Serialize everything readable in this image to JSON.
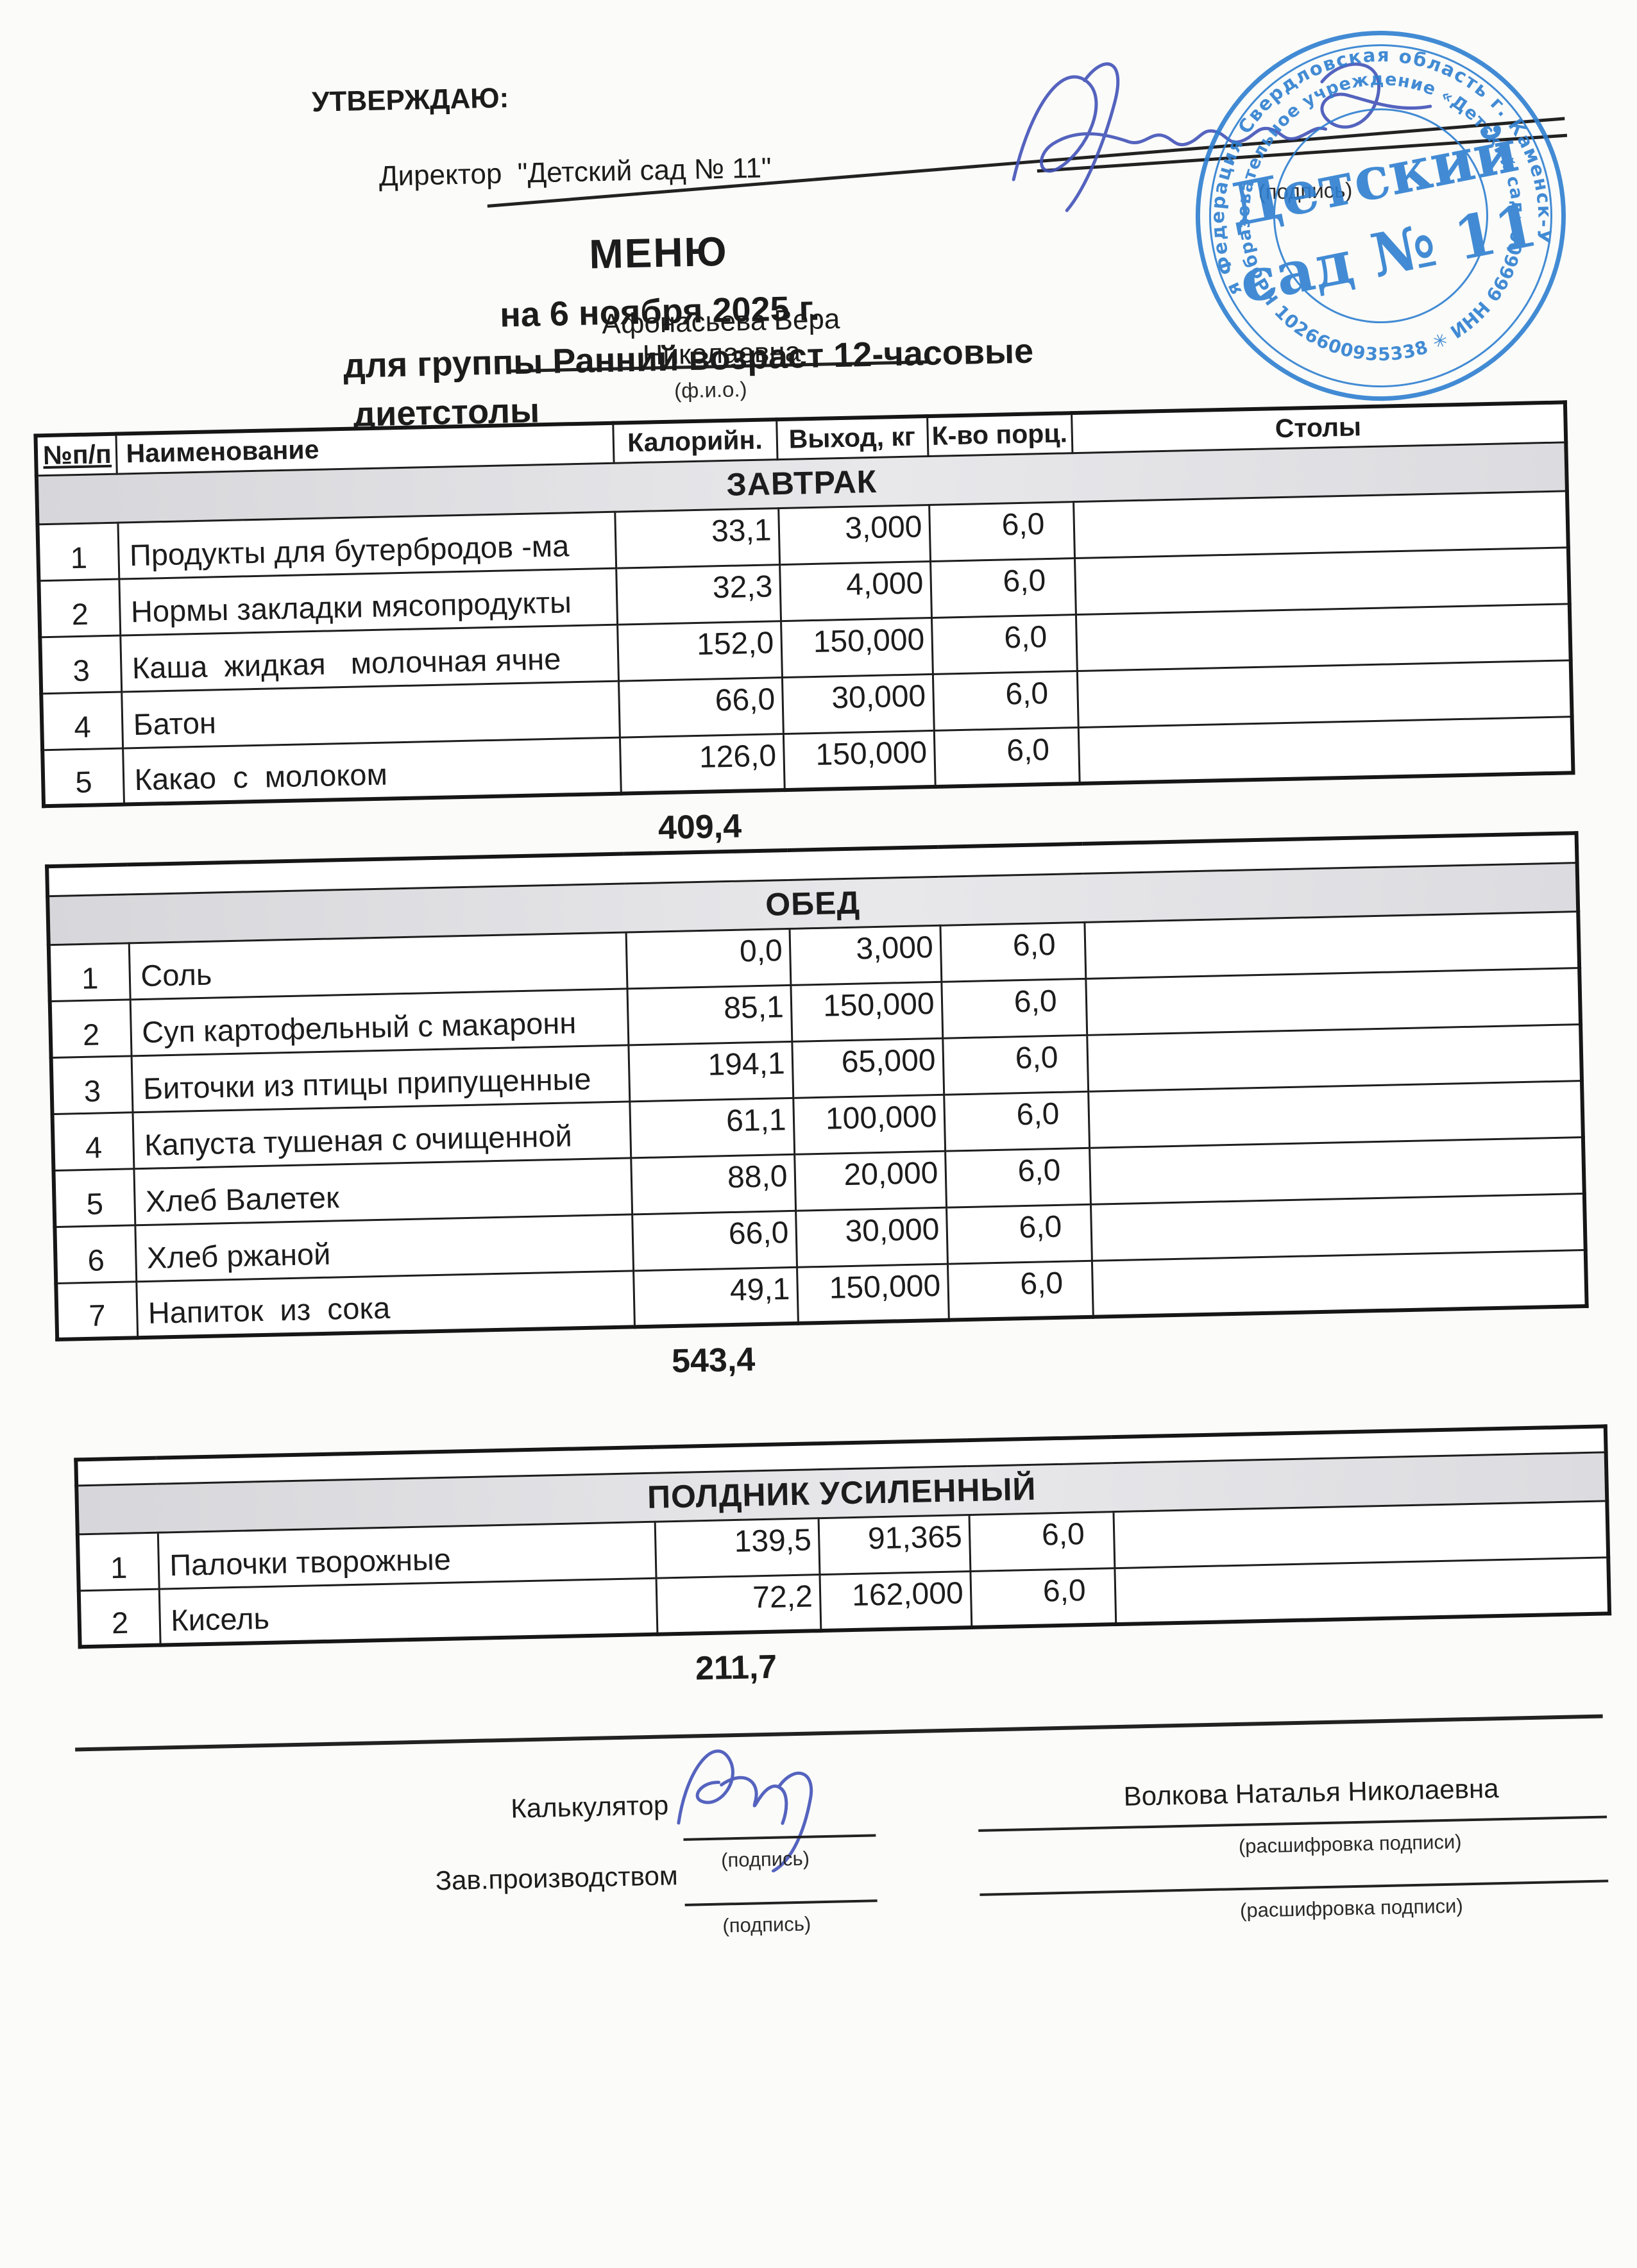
{
  "approval": {
    "approve_label": "УТВЕРЖДАЮ:",
    "director_label": "Директор",
    "director_value": "\"Детский сад № 11\"",
    "fio_value": "Афонасьева Вера Николаевна",
    "fio_caption": "(ф.и.о.)",
    "signature_caption": "(подпись)"
  },
  "stamp": {
    "center_line1": "Детский",
    "center_line2": "сад № 11",
    "ring_top": "Российская Федерация  Свердловская область  г. Каменск-Уральский",
    "ring_mid": "образовательное учреждение «Детский сад»",
    "ring_bottom": "✳  ОГРН 1026600935338   ✳   ИНН 6666009992",
    "color": "#2e7fd0"
  },
  "title": {
    "line1": "МЕНЮ",
    "line2": "на 6 ноября 2025 г.",
    "line3": "для группы Ранний возраст 12-часовые",
    "line4": "диетстолы"
  },
  "columns": [
    "№п/п",
    "Наименование",
    "Калорийн.",
    "Выход, кг",
    "К-во порц.",
    "Столы"
  ],
  "sections": [
    {
      "name": "ЗАВТРАК",
      "total": "409,4",
      "rows": [
        {
          "num": "1",
          "name": "Продукты для бутербродов -ма",
          "cal": "33,1",
          "out": "3,000",
          "port": "6,0",
          "tables": ""
        },
        {
          "num": "2",
          "name": "Нормы закладки мясопродукты",
          "cal": "32,3",
          "out": "4,000",
          "port": "6,0",
          "tables": ""
        },
        {
          "num": "3",
          "name": "Каша  жидкая   молочная ячне",
          "cal": "152,0",
          "out": "150,000",
          "port": "6,0",
          "tables": ""
        },
        {
          "num": "4",
          "name": "Батон",
          "cal": "66,0",
          "out": "30,000",
          "port": "6,0",
          "tables": ""
        },
        {
          "num": "5",
          "name": "Какао  с  молоком",
          "cal": "126,0",
          "out": "150,000",
          "port": "6,0",
          "tables": ""
        }
      ]
    },
    {
      "name": "ОБЕД",
      "total": "543,4",
      "rows": [
        {
          "num": "1",
          "name": "Соль",
          "cal": "0,0",
          "out": "3,000",
          "port": "6,0",
          "tables": ""
        },
        {
          "num": "2",
          "name": "Суп картофельный с макаронн",
          "cal": "85,1",
          "out": "150,000",
          "port": "6,0",
          "tables": ""
        },
        {
          "num": "3",
          "name": "Биточки из птицы припущенные",
          "cal": "194,1",
          "out": "65,000",
          "port": "6,0",
          "tables": ""
        },
        {
          "num": "4",
          "name": "Капуста тушеная с очищенной",
          "cal": "61,1",
          "out": "100,000",
          "port": "6,0",
          "tables": ""
        },
        {
          "num": "5",
          "name": "Хлеб Валетек",
          "cal": "88,0",
          "out": "20,000",
          "port": "6,0",
          "tables": ""
        },
        {
          "num": "6",
          "name": "Хлеб ржаной",
          "cal": "66,0",
          "out": "30,000",
          "port": "6,0",
          "tables": ""
        },
        {
          "num": "7",
          "name": "Напиток  из  сока",
          "cal": "49,1",
          "out": "150,000",
          "port": "6,0",
          "tables": ""
        }
      ]
    },
    {
      "name": "ПОЛДНИК УСИЛЕННЫЙ",
      "total": "211,7",
      "rows": [
        {
          "num": "1",
          "name": "Палочки творожные",
          "cal": "139,5",
          "out": "91,365",
          "port": "6,0",
          "tables": ""
        },
        {
          "num": "2",
          "name": "Кисель",
          "cal": "72,2",
          "out": "162,000",
          "port": "6,0",
          "tables": ""
        }
      ]
    }
  ],
  "footer": {
    "calculator_label": "Калькулятор",
    "production_label": "Зав.производством",
    "signature_caption": "(подпись)",
    "calculator_name": "Волкова Наталья Николаевна",
    "transcript_caption": "(расшифровка подписи)"
  }
}
